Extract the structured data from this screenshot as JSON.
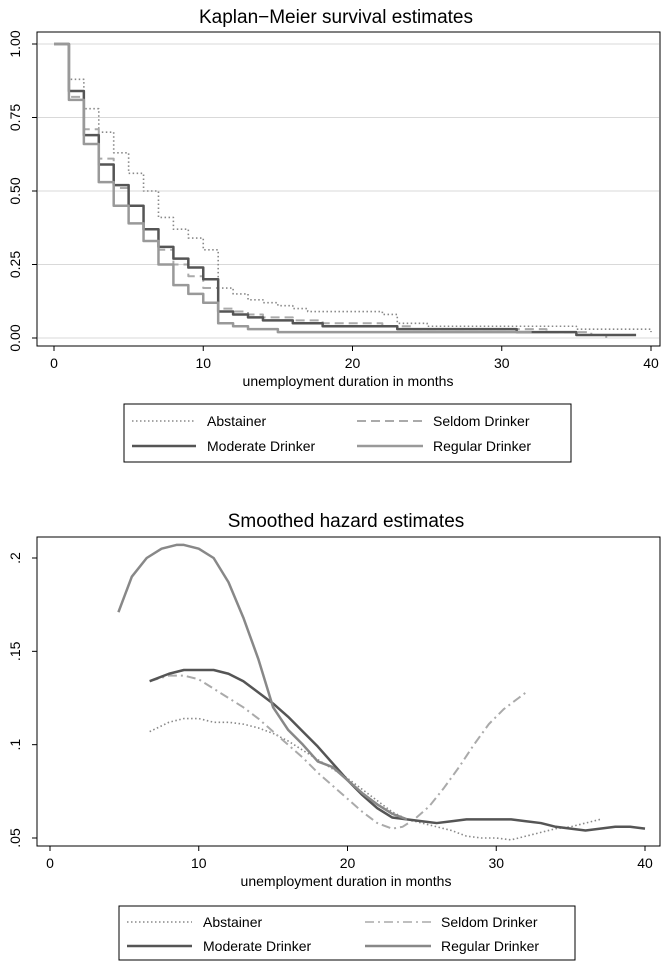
{
  "chart_data": [
    {
      "type": "line",
      "step": true,
      "title": "Kaplan−Meier survival estimates",
      "xlabel": "unemployment duration in months",
      "ylabel": "",
      "xlim": [
        0,
        40
      ],
      "ylim": [
        0,
        1
      ],
      "xticks": [
        0,
        10,
        20,
        30,
        40
      ],
      "xtick_labels": [
        "0",
        "10",
        "20",
        "30",
        "40"
      ],
      "yticks": [
        0,
        0.25,
        0.5,
        0.75,
        1
      ],
      "ytick_labels": [
        "0.00",
        "0.25",
        "0.50",
        "0.75",
        "1.00"
      ],
      "grid": true,
      "legend_position": "bottom",
      "series": [
        {
          "name": "Abstainer",
          "color": "#888888",
          "style": "dotted",
          "x": [
            0,
            1,
            2,
            3,
            4,
            5,
            6,
            7,
            8,
            9,
            10,
            11,
            12,
            13,
            14,
            15,
            16,
            17,
            18,
            19,
            20,
            21,
            22,
            23,
            24,
            25,
            26,
            27,
            28,
            29,
            30,
            31,
            32,
            33,
            34,
            35,
            36,
            37,
            38,
            39,
            40
          ],
          "y": [
            1.0,
            0.88,
            0.78,
            0.7,
            0.63,
            0.56,
            0.5,
            0.41,
            0.37,
            0.34,
            0.3,
            0.17,
            0.15,
            0.13,
            0.12,
            0.11,
            0.1,
            0.09,
            0.09,
            0.09,
            0.09,
            0.09,
            0.08,
            0.05,
            0.05,
            0.04,
            0.04,
            0.04,
            0.04,
            0.04,
            0.04,
            0.04,
            0.04,
            0.04,
            0.04,
            0.03,
            0.03,
            0.03,
            0.03,
            0.03,
            0.02
          ]
        },
        {
          "name": "Seldom Drinker",
          "color": "#aaaaaa",
          "style": "dashed",
          "x": [
            0,
            1,
            2,
            3,
            4,
            5,
            6,
            7,
            8,
            9,
            10,
            11,
            12,
            13,
            14,
            15,
            16,
            17,
            18,
            19,
            20,
            21,
            22,
            23,
            24,
            25,
            26,
            27,
            28,
            29,
            30,
            31,
            32,
            33,
            34,
            35,
            36,
            37
          ],
          "y": [
            1.0,
            0.82,
            0.71,
            0.61,
            0.51,
            0.45,
            0.37,
            0.3,
            0.25,
            0.21,
            0.17,
            0.1,
            0.09,
            0.08,
            0.07,
            0.07,
            0.06,
            0.06,
            0.05,
            0.05,
            0.05,
            0.05,
            0.04,
            0.04,
            0.03,
            0.03,
            0.03,
            0.03,
            0.03,
            0.03,
            0.03,
            0.03,
            0.03,
            0.02,
            0.02,
            0.02,
            0.01,
            0.0
          ]
        },
        {
          "name": "Moderate Drinker",
          "color": "#555555",
          "style": "solid",
          "x": [
            0,
            1,
            2,
            3,
            4,
            5,
            6,
            7,
            8,
            9,
            10,
            11,
            12,
            13,
            14,
            15,
            16,
            17,
            18,
            19,
            20,
            21,
            22,
            23,
            24,
            25,
            26,
            27,
            28,
            29,
            30,
            31,
            32,
            33,
            34,
            35,
            36,
            37,
            38,
            39
          ],
          "y": [
            1.0,
            0.84,
            0.69,
            0.59,
            0.52,
            0.45,
            0.37,
            0.31,
            0.27,
            0.24,
            0.2,
            0.09,
            0.08,
            0.07,
            0.06,
            0.06,
            0.05,
            0.05,
            0.04,
            0.04,
            0.04,
            0.04,
            0.04,
            0.03,
            0.03,
            0.03,
            0.03,
            0.03,
            0.03,
            0.03,
            0.03,
            0.02,
            0.02,
            0.02,
            0.02,
            0.01,
            0.01,
            0.01,
            0.01,
            0.01
          ]
        },
        {
          "name": "Regular Drinker",
          "color": "#999999",
          "style": "solid",
          "x": [
            0,
            1,
            2,
            3,
            4,
            5,
            6,
            7,
            8,
            9,
            10,
            11,
            12,
            13,
            14,
            15,
            16,
            17,
            18,
            19,
            20,
            21,
            22,
            23,
            24,
            25,
            26,
            27,
            28,
            29,
            30,
            31,
            32
          ],
          "y": [
            1.0,
            0.81,
            0.66,
            0.53,
            0.45,
            0.39,
            0.33,
            0.25,
            0.18,
            0.15,
            0.12,
            0.05,
            0.04,
            0.03,
            0.03,
            0.02,
            0.02,
            0.02,
            0.02,
            0.02,
            0.02,
            0.02,
            0.02,
            0.02,
            0.02,
            0.02,
            0.02,
            0.02,
            0.02,
            0.02,
            0.02,
            0.02,
            0.02
          ]
        }
      ],
      "legend": [
        "Abstainer",
        "Seldom Drinker",
        "Moderate Drinker",
        "Regular Drinker"
      ]
    },
    {
      "type": "line",
      "title": "Smoothed hazard estimates",
      "xlabel": "unemployment duration in months",
      "ylabel": "",
      "xlim": [
        0,
        40
      ],
      "ylim": [
        0.05,
        0.2
      ],
      "xticks": [
        0,
        10,
        20,
        30,
        40
      ],
      "xtick_labels": [
        "0",
        "10",
        "20",
        "30",
        "40"
      ],
      "yticks": [
        0.05,
        0.1,
        0.15,
        0.2
      ],
      "ytick_labels": [
        ".05",
        ".1",
        ".15",
        ".2"
      ],
      "grid": false,
      "legend_position": "bottom",
      "series": [
        {
          "name": "Abstainer",
          "color": "#888888",
          "style": "dotted",
          "x": [
            6.7,
            8,
            9,
            10,
            11,
            12,
            13,
            14,
            15,
            16,
            17,
            18,
            19,
            20,
            21,
            22,
            23,
            24,
            25,
            26,
            27,
            28,
            29,
            30,
            31,
            32,
            33,
            34,
            35,
            36,
            37
          ],
          "y": [
            0.107,
            0.112,
            0.114,
            0.114,
            0.112,
            0.112,
            0.111,
            0.109,
            0.106,
            0.102,
            0.097,
            0.092,
            0.087,
            0.082,
            0.076,
            0.07,
            0.064,
            0.06,
            0.058,
            0.056,
            0.054,
            0.051,
            0.05,
            0.05,
            0.049,
            0.051,
            0.053,
            0.055,
            0.056,
            0.058,
            0.06
          ]
        },
        {
          "name": "Seldom Drinker",
          "color": "#aaaaaa",
          "style": "dashdot",
          "x": [
            6.7,
            8,
            9,
            10,
            11,
            12,
            13,
            14,
            15,
            16,
            17,
            18,
            19,
            20,
            21,
            22,
            23,
            23.7,
            24.5,
            25.5,
            26.5,
            27.5,
            28.5,
            29.5,
            30.5,
            31.5,
            32
          ],
          "y": [
            0.134,
            0.137,
            0.137,
            0.135,
            0.13,
            0.125,
            0.12,
            0.114,
            0.107,
            0.1,
            0.093,
            0.085,
            0.078,
            0.071,
            0.064,
            0.058,
            0.055,
            0.056,
            0.06,
            0.067,
            0.077,
            0.088,
            0.1,
            0.111,
            0.119,
            0.125,
            0.128
          ]
        },
        {
          "name": "Moderate Drinker",
          "color": "#555555",
          "style": "solid",
          "x": [
            6.7,
            8,
            9,
            10,
            11,
            12,
            13,
            14,
            15,
            16,
            17,
            18,
            19,
            20,
            21,
            22,
            23,
            24,
            25,
            26,
            27,
            28,
            29,
            30,
            31,
            32,
            33,
            34,
            35,
            36,
            37,
            38,
            39,
            40
          ],
          "y": [
            0.134,
            0.138,
            0.14,
            0.14,
            0.14,
            0.138,
            0.134,
            0.128,
            0.122,
            0.115,
            0.107,
            0.099,
            0.09,
            0.081,
            0.073,
            0.066,
            0.061,
            0.06,
            0.059,
            0.058,
            0.059,
            0.06,
            0.06,
            0.06,
            0.06,
            0.059,
            0.058,
            0.056,
            0.055,
            0.054,
            0.055,
            0.056,
            0.056,
            0.055
          ]
        },
        {
          "name": "Regular Drinker",
          "color": "#888888",
          "style": "solid",
          "x": [
            4.6,
            5.5,
            6.5,
            7.5,
            8.5,
            9,
            10,
            11,
            12,
            13,
            14,
            15,
            16,
            17,
            18,
            19,
            20,
            21,
            22,
            23,
            24
          ],
          "y": [
            0.171,
            0.19,
            0.2,
            0.205,
            0.207,
            0.207,
            0.205,
            0.2,
            0.187,
            0.168,
            0.146,
            0.12,
            0.108,
            0.1,
            0.091,
            0.088,
            0.081,
            0.074,
            0.068,
            0.063,
            0.06
          ]
        }
      ],
      "legend": [
        "Abstainer",
        "Seldom Drinker",
        "Moderate Drinker",
        "Regular Drinker"
      ]
    }
  ]
}
